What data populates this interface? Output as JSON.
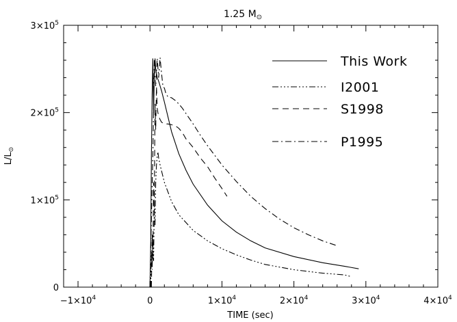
{
  "chart_data": {
    "type": "line",
    "title": "1.25 M",
    "title_symbol": "sun-symbol",
    "xlabel": "TIME (sec)",
    "ylabel": "L/L",
    "ylabel_symbol": "sun-symbol",
    "xlim": [
      -12000,
      40000
    ],
    "ylim": [
      0,
      300000
    ],
    "x_ticks": [
      {
        "value": -10000,
        "mant": "−1×10",
        "exp": "4"
      },
      {
        "value": 0,
        "mant": "0",
        "exp": ""
      },
      {
        "value": 10000,
        "mant": "1×10",
        "exp": "4"
      },
      {
        "value": 20000,
        "mant": "2×10",
        "exp": "4"
      },
      {
        "value": 30000,
        "mant": "3×10",
        "exp": "4"
      },
      {
        "value": 40000,
        "mant": "4×10",
        "exp": "4"
      }
    ],
    "y_ticks": [
      {
        "value": 0,
        "mant": "0",
        "exp": ""
      },
      {
        "value": 100000,
        "mant": "1×10",
        "exp": "5"
      },
      {
        "value": 200000,
        "mant": "2×10",
        "exp": "5"
      },
      {
        "value": 300000,
        "mant": "3×10",
        "exp": "5"
      }
    ],
    "grid": false,
    "legend_placement": "top-right",
    "series": [
      {
        "name": "This Work",
        "dash": "solid",
        "x": [
          0,
          100,
          200,
          300,
          400,
          500,
          600,
          700,
          800,
          900,
          1000,
          1200,
          1600,
          2000,
          3000,
          4000,
          5000,
          6000,
          8000,
          10000,
          12000,
          14000,
          16000,
          20000,
          24000,
          27000,
          29000
        ],
        "y": [
          0,
          50000,
          150000,
          220000,
          262000,
          200000,
          240000,
          262000,
          250000,
          245000,
          240000,
          236000,
          225000,
          212000,
          178000,
          153000,
          134000,
          118000,
          94000,
          76000,
          63000,
          53000,
          45000,
          35000,
          28000,
          24000,
          21000
        ]
      },
      {
        "name": "I2001",
        "dash": "dash-dot-dot-dot",
        "x": [
          100,
          200,
          300,
          400,
          500,
          600,
          700,
          800,
          900,
          1000,
          1100,
          1200,
          1400,
          2000,
          3000,
          4000,
          6000,
          8000,
          10000,
          12000,
          14000,
          16000,
          20000,
          24000,
          27000,
          28000
        ],
        "y": [
          0,
          40000,
          20000,
          60000,
          30000,
          90000,
          70000,
          120000,
          140000,
          150000,
          155000,
          148000,
          140000,
          120000,
          98000,
          83000,
          65000,
          53000,
          44000,
          37000,
          31000,
          26000,
          20000,
          16000,
          14000,
          12000
        ]
      },
      {
        "name": "S1998",
        "dash": "dashed",
        "x": [
          200,
          300,
          400,
          500,
          600,
          700,
          800,
          900,
          1000,
          1100,
          1200,
          1400,
          1600,
          2000,
          2500,
          3000,
          3500,
          4000,
          4500,
          5000,
          6000,
          7000,
          8000,
          9000,
          10000,
          10700
        ],
        "y": [
          0,
          60000,
          30000,
          120000,
          90000,
          210000,
          180000,
          230000,
          205000,
          200000,
          196000,
          192000,
          189000,
          187000,
          187000,
          186000,
          185000,
          182000,
          177000,
          170000,
          160000,
          148000,
          138000,
          125000,
          113000,
          104000
        ]
      },
      {
        "name": "P1995",
        "dash": "dash-dot",
        "x": [
          0,
          200,
          400,
          600,
          800,
          1000,
          1200,
          1400,
          1600,
          1800,
          2000,
          2200,
          2500,
          3000,
          3500,
          4000,
          4500,
          5000,
          6000,
          7000,
          8000,
          10000,
          12000,
          14000,
          16000,
          18000,
          20000,
          22000,
          24000,
          25800
        ],
        "y": [
          0,
          80000,
          150000,
          260000,
          230000,
          262000,
          240000,
          263000,
          245000,
          230000,
          228000,
          222000,
          218000,
          217000,
          214000,
          210000,
          205000,
          199000,
          187000,
          174000,
          162000,
          140000,
          121000,
          104000,
          90000,
          78000,
          68000,
          60000,
          53000,
          48000
        ]
      }
    ]
  }
}
